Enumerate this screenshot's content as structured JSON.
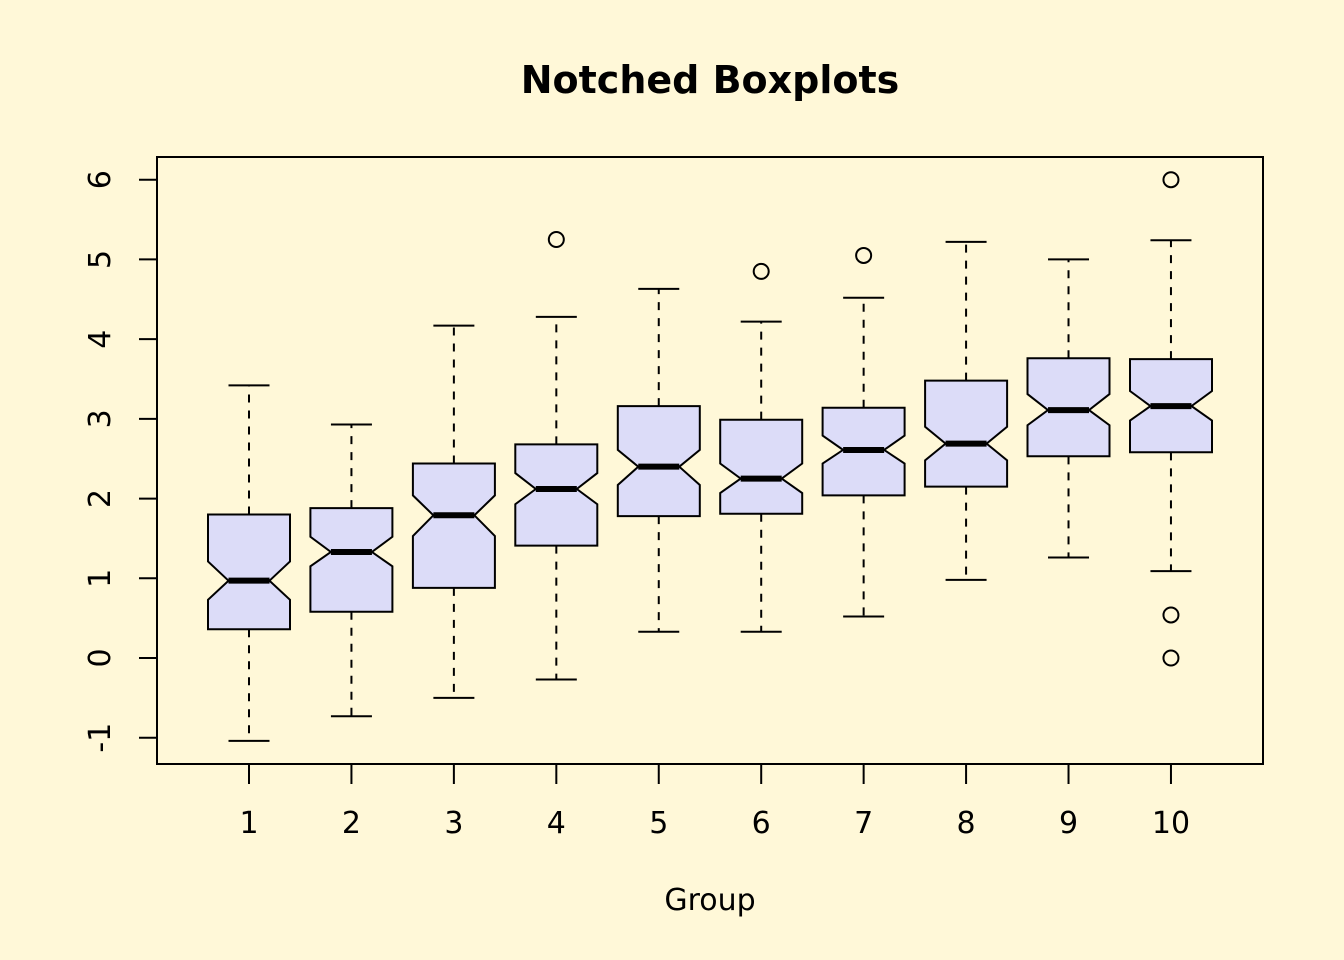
{
  "chart_data": {
    "type": "boxplot",
    "title": "Notched Boxplots",
    "xlabel": "Group",
    "ylabel": "",
    "ylim": [
      -1.3,
      6.3
    ],
    "yticks": [
      "-1",
      "0",
      "1",
      "2",
      "3",
      "4",
      "5",
      "6"
    ],
    "grid": false,
    "box_color": "#DCDCF8",
    "background": "#FFF8D8",
    "categories": [
      "1",
      "2",
      "3",
      "4",
      "5",
      "6",
      "7",
      "8",
      "9",
      "10"
    ],
    "groups": [
      {
        "label": "1",
        "whisker_low": -1.04,
        "q1": 0.36,
        "median": 0.97,
        "q3": 1.8,
        "whisker_high": 3.42,
        "notch_low": 0.73,
        "notch_high": 1.21,
        "outliers": []
      },
      {
        "label": "2",
        "whisker_low": -0.73,
        "q1": 0.58,
        "median": 1.33,
        "q3": 1.88,
        "whisker_high": 2.93,
        "notch_low": 1.15,
        "notch_high": 1.52,
        "outliers": []
      },
      {
        "label": "3",
        "whisker_low": -0.5,
        "q1": 0.88,
        "median": 1.79,
        "q3": 2.44,
        "whisker_high": 4.17,
        "notch_low": 1.53,
        "notch_high": 2.04,
        "outliers": []
      },
      {
        "label": "4",
        "whisker_low": -0.27,
        "q1": 1.41,
        "median": 2.12,
        "q3": 2.68,
        "whisker_high": 4.28,
        "notch_low": 1.93,
        "notch_high": 2.32,
        "outliers": [
          5.25
        ]
      },
      {
        "label": "5",
        "whisker_low": 0.33,
        "q1": 1.78,
        "median": 2.4,
        "q3": 3.16,
        "whisker_high": 4.63,
        "notch_low": 2.17,
        "notch_high": 2.61,
        "outliers": []
      },
      {
        "label": "6",
        "whisker_low": 0.33,
        "q1": 1.81,
        "median": 2.25,
        "q3": 2.99,
        "whisker_high": 4.22,
        "notch_low": 2.07,
        "notch_high": 2.44,
        "outliers": [
          4.85
        ]
      },
      {
        "label": "7",
        "whisker_low": 0.52,
        "q1": 2.04,
        "median": 2.61,
        "q3": 3.14,
        "whisker_high": 4.52,
        "notch_low": 2.44,
        "notch_high": 2.79,
        "outliers": [
          5.05
        ]
      },
      {
        "label": "8",
        "whisker_low": 0.98,
        "q1": 2.15,
        "median": 2.69,
        "q3": 3.48,
        "whisker_high": 5.22,
        "notch_low": 2.48,
        "notch_high": 2.9,
        "outliers": []
      },
      {
        "label": "9",
        "whisker_low": 1.26,
        "q1": 2.53,
        "median": 3.11,
        "q3": 3.76,
        "whisker_high": 5.0,
        "notch_low": 2.92,
        "notch_high": 3.31,
        "outliers": []
      },
      {
        "label": "10",
        "whisker_low": 1.09,
        "q1": 2.58,
        "median": 3.16,
        "q3": 3.75,
        "whisker_high": 5.24,
        "notch_low": 2.98,
        "notch_high": 3.35,
        "outliers": [
          6.0,
          0.54,
          0.0
        ]
      }
    ]
  }
}
